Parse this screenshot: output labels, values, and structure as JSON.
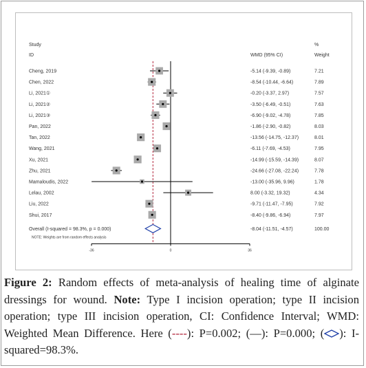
{
  "chart_data": {
    "type": "forest",
    "headers": {
      "study": "Study",
      "id": "ID",
      "effect": "WMD (95% CI)",
      "weight_top": "%",
      "weight": "Weight"
    },
    "studies": [
      {
        "name": "Cheng, 2019",
        "wmd": -5.14,
        "lo": -9.39,
        "hi": -0.89,
        "ci_text": "-5.14 (-9.39, -0.89)",
        "weight": "7.21",
        "w": 7.21
      },
      {
        "name": "Chen, 2022",
        "wmd": -8.54,
        "lo": -10.44,
        "hi": -6.64,
        "ci_text": "-8.54 (-10.44, -6.64)",
        "weight": "7.89",
        "w": 7.89
      },
      {
        "name": "Li, 2021①",
        "wmd": -0.2,
        "lo": -3.37,
        "hi": 2.97,
        "ci_text": "-0.20 (-3.37, 2.97)",
        "weight": "7.57",
        "w": 7.57
      },
      {
        "name": "Li, 2021②",
        "wmd": -3.5,
        "lo": -6.49,
        "hi": -0.51,
        "ci_text": "-3.50 (-6.49, -0.51)",
        "weight": "7.63",
        "w": 7.63
      },
      {
        "name": "Li, 2021③",
        "wmd": -6.9,
        "lo": -9.02,
        "hi": -4.78,
        "ci_text": "-6.90 (-9.02, -4.78)",
        "weight": "7.85",
        "w": 7.85
      },
      {
        "name": "Pan, 2022",
        "wmd": -1.86,
        "lo": -2.9,
        "hi": -0.82,
        "ci_text": "-1.86 (-2.90, -0.82)",
        "weight": "8.03",
        "w": 8.03
      },
      {
        "name": "Tan, 2022",
        "wmd": -13.56,
        "lo": -14.75,
        "hi": -12.37,
        "ci_text": "-13.56 (-14.75, -12.37)",
        "weight": "8.01",
        "w": 8.01
      },
      {
        "name": "Wang, 2021",
        "wmd": -6.11,
        "lo": -7.69,
        "hi": -4.53,
        "ci_text": "-6.11 (-7.69, -4.53)",
        "weight": "7.95",
        "w": 7.95
      },
      {
        "name": "Xu, 2021",
        "wmd": -14.99,
        "lo": -15.59,
        "hi": -14.39,
        "ci_text": "-14.99 (-15.59, -14.39)",
        "weight": "8.07",
        "w": 8.07
      },
      {
        "name": "Zhu, 2021",
        "wmd": -24.66,
        "lo": -27.08,
        "hi": -22.24,
        "ci_text": "-24.66 (-27.08, -22.24)",
        "weight": "7.78",
        "w": 7.78
      },
      {
        "name": "Mamaloudis, 2022",
        "wmd": -13.0,
        "lo": -35.96,
        "hi": 9.96,
        "ci_text": "-13.00 (-35.96, 9.96)",
        "weight": "1.78",
        "w": 1.78
      },
      {
        "name": "Lelau, 2002",
        "wmd": 8.0,
        "lo": -3.32,
        "hi": 19.32,
        "ci_text": "8.00 (-3.32, 19.32)",
        "weight": "4.34",
        "w": 4.34
      },
      {
        "name": "Liu, 2022",
        "wmd": -9.71,
        "lo": -11.47,
        "hi": -7.95,
        "ci_text": "-9.71 (-11.47, -7.95)",
        "weight": "7.92",
        "w": 7.92
      },
      {
        "name": "Shui, 2017",
        "wmd": -8.4,
        "lo": -9.86,
        "hi": -6.94,
        "ci_text": "-8.40 (-9.86, -6.94)",
        "weight": "7.97",
        "w": 7.97
      }
    ],
    "overall": {
      "label": "Overall  (I-squared = 98.3%, p = 0.000)",
      "wmd": -8.04,
      "lo": -11.51,
      "hi": -4.57,
      "ci_text": "-8.04 (-11.51, -4.57)",
      "weight": "100.00"
    },
    "note": "NOTE: Weights are from random effects analysis",
    "x_ticks": [
      {
        "v": -36,
        "label": "-36"
      },
      {
        "v": 0,
        "label": "0"
      },
      {
        "v": 36,
        "label": "36"
      }
    ],
    "xlim": [
      -36,
      36
    ],
    "colors": {
      "overall_line": "#b2233a",
      "diamond": "#1f3fa8",
      "box": "#aaaaaa",
      "line": "#000000"
    }
  },
  "caption": {
    "label": "Figure 2:",
    "text1": " Random effects of meta-analysis of healing time of alginate dressings for wound. ",
    "note_label": "Note:",
    "text2": " Type I incision operation; type II incision operation; type III incision operation, CI: Confidence Interval; WMD: Weighted Mean Difference. Here (",
    "sym_dash": "----",
    "text3": "): P=0.002; (",
    "sym_line": "—",
    "text4": "): P=0.000; (",
    "text5": "): I-squared=98.3%."
  }
}
